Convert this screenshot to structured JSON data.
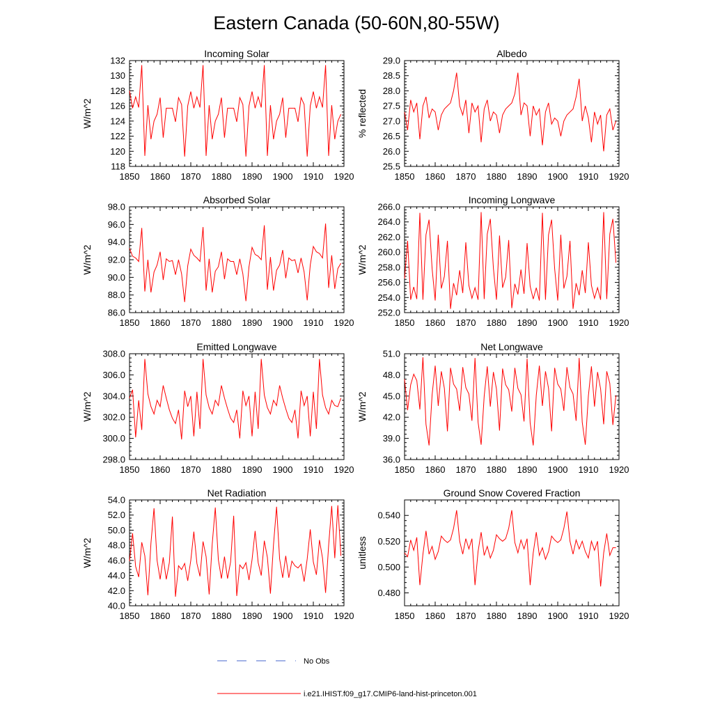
{
  "page": {
    "title": "Eastern Canada (50-60N,80-55W)",
    "colors": {
      "model_line": "#ff0000",
      "obs_line": "#4466cc",
      "axes": "#000000"
    }
  },
  "legend": {
    "obs_label": "No Obs",
    "model_label": "i.e21.IHIST.f09_g17.CMIP6-land-hist-princeton.001"
  },
  "chart_data": [
    {
      "type": "line",
      "title": "Incoming Solar",
      "ylabel": "W/m^2",
      "xlim": [
        1850,
        1920
      ],
      "ylim": [
        118,
        132
      ],
      "yticks": [
        "118",
        "120",
        "122",
        "124",
        "126",
        "128",
        "130",
        "132"
      ],
      "xticks": [
        "1850",
        "1860",
        "1870",
        "1880",
        "1890",
        "1900",
        "1910",
        "1920"
      ],
      "x_start": 1850,
      "series": [
        {
          "values": [
            128.0,
            125.7,
            127.2,
            125.8,
            131.4,
            119.4,
            126.1,
            121.6,
            124.0,
            124.9,
            127.1,
            121.8,
            125.7,
            125.7,
            125.7,
            123.9,
            127.1,
            126.2,
            119.3,
            126.0,
            127.9,
            125.7,
            127.2,
            125.8,
            131.4,
            119.4,
            126.1,
            121.6,
            124.0,
            124.9,
            127.1,
            121.8,
            125.7,
            125.7,
            125.7,
            123.9,
            127.1,
            126.2,
            119.3,
            126.0,
            127.9,
            125.7,
            127.2,
            125.8,
            131.4,
            119.4,
            126.1,
            121.6,
            124.0,
            124.9,
            127.1,
            121.8,
            125.7,
            125.7,
            125.7,
            123.9,
            127.1,
            126.2,
            119.3,
            126.0,
            127.9,
            125.7,
            127.2,
            125.8,
            131.4,
            119.4,
            126.1,
            121.6,
            124.0,
            124.9
          ]
        }
      ]
    },
    {
      "type": "line",
      "title": "Albedo",
      "ylabel": "% reflected",
      "xlim": [
        1850,
        1920
      ],
      "ylim": [
        25.5,
        29.0
      ],
      "yticks": [
        "25.5",
        "26.0",
        "26.5",
        "27.0",
        "27.5",
        "28.0",
        "28.5",
        "29.0"
      ],
      "xticks": [
        "1850",
        "1860",
        "1870",
        "1880",
        "1890",
        "1900",
        "1910",
        "1920"
      ],
      "x_start": 1850,
      "series": [
        {
          "values": [
            27.3,
            26.7,
            27.7,
            27.3,
            27.6,
            26.4,
            27.5,
            27.8,
            27.1,
            27.4,
            27.3,
            26.7,
            27.2,
            27.4,
            27.5,
            27.6,
            28.0,
            28.6,
            27.5,
            27.2,
            27.7,
            26.6,
            27.6,
            27.3,
            27.5,
            26.3,
            27.4,
            27.7,
            27.0,
            27.3,
            27.2,
            26.6,
            27.2,
            27.4,
            27.5,
            27.6,
            27.9,
            28.6,
            27.2,
            27.6,
            27.5,
            26.5,
            27.5,
            27.2,
            27.4,
            26.2,
            27.3,
            27.6,
            26.9,
            27.1,
            27.0,
            26.5,
            27.0,
            27.2,
            27.3,
            27.4,
            27.8,
            28.4,
            27.0,
            27.5,
            27.1,
            26.3,
            27.3,
            26.9,
            27.2,
            26.0,
            27.2,
            27.4,
            26.7,
            27.0
          ]
        }
      ]
    },
    {
      "type": "line",
      "title": "Absorbed Solar",
      "ylabel": "W/m^2",
      "xlim": [
        1850,
        1920
      ],
      "ylim": [
        86.0,
        98.0
      ],
      "yticks": [
        "86.0",
        "88.0",
        "90.0",
        "92.0",
        "94.0",
        "96.0",
        "98.0"
      ],
      "xticks": [
        "1850",
        "1860",
        "1870",
        "1880",
        "1890",
        "1900",
        "1910",
        "1920"
      ],
      "x_start": 1850,
      "series": [
        {
          "values": [
            93.3,
            92.4,
            92.2,
            91.8,
            95.6,
            88.4,
            92.0,
            88.3,
            90.6,
            91.4,
            92.9,
            89.7,
            92.1,
            91.8,
            91.9,
            90.3,
            92.0,
            90.4,
            87.2,
            91.3,
            93.2,
            92.5,
            92.2,
            91.8,
            95.7,
            88.5,
            92.1,
            88.3,
            90.7,
            91.2,
            92.9,
            89.8,
            92.1,
            91.8,
            91.8,
            90.3,
            92.1,
            90.4,
            87.3,
            91.2,
            93.4,
            92.6,
            92.4,
            92.0,
            95.9,
            88.6,
            92.3,
            88.5,
            90.8,
            91.4,
            93.1,
            89.9,
            92.2,
            91.9,
            92.0,
            90.5,
            92.2,
            90.6,
            87.4,
            91.4,
            93.5,
            92.9,
            92.7,
            92.2,
            96.1,
            88.8,
            92.5,
            88.7,
            91.0,
            91.6
          ]
        }
      ]
    },
    {
      "type": "line",
      "title": "Incoming Longwave",
      "ylabel": "W/m^2",
      "xlim": [
        1850,
        1920
      ],
      "ylim": [
        252.0,
        266.0
      ],
      "yticks": [
        "252.0",
        "254.0",
        "256.0",
        "258.0",
        "260.0",
        "262.0",
        "264.0",
        "266.0"
      ],
      "xticks": [
        "1850",
        "1860",
        "1870",
        "1880",
        "1890",
        "1900",
        "1910",
        "1920"
      ],
      "x_start": 1850,
      "series": [
        {
          "values": [
            256.5,
            261.5,
            253.7,
            255.4,
            253.8,
            265.2,
            253.7,
            262.3,
            264.3,
            257.8,
            253.6,
            262.3,
            255.2,
            256.8,
            261.5,
            252.5,
            255.9,
            254.3,
            257.6,
            254.6,
            261.3,
            255.6,
            253.9,
            255.3,
            253.7,
            265.3,
            253.8,
            262.4,
            264.4,
            257.9,
            253.7,
            262.2,
            255.3,
            256.7,
            261.6,
            252.6,
            255.8,
            254.4,
            257.7,
            254.5,
            261.2,
            255.5,
            253.8,
            255.3,
            253.6,
            265.2,
            253.7,
            262.3,
            264.3,
            257.8,
            253.6,
            262.3,
            255.2,
            256.8,
            261.5,
            252.5,
            255.9,
            254.3,
            257.6,
            254.6,
            261.3,
            255.6,
            253.9,
            255.3,
            253.7,
            265.3,
            253.8,
            262.4,
            264.4,
            258.6
          ]
        }
      ]
    },
    {
      "type": "line",
      "title": "Emitted Longwave",
      "ylabel": "W/m^2",
      "xlim": [
        1850,
        1920
      ],
      "ylim": [
        298.0,
        308.0
      ],
      "yticks": [
        "298.0",
        "300.0",
        "302.0",
        "304.0",
        "306.0",
        "308.0"
      ],
      "xticks": [
        "1850",
        "1860",
        "1870",
        "1880",
        "1890",
        "1900",
        "1910",
        "1920"
      ],
      "x_start": 1850,
      "series": [
        {
          "values": [
            303.8,
            304.6,
            300.1,
            303.6,
            300.8,
            307.5,
            304.2,
            303.0,
            302.3,
            303.6,
            303.0,
            305.0,
            303.8,
            302.7,
            301.9,
            301.4,
            302.7,
            299.9,
            304.5,
            303.0,
            304.0,
            300.2,
            304.4,
            300.9,
            307.5,
            304.1,
            302.9,
            302.3,
            303.6,
            303.1,
            305.0,
            303.8,
            302.8,
            301.9,
            301.5,
            302.7,
            300.0,
            304.5,
            303.1,
            304.0,
            300.2,
            304.4,
            300.9,
            307.5,
            304.1,
            302.9,
            302.3,
            303.6,
            303.1,
            305.0,
            303.8,
            302.8,
            301.9,
            301.5,
            302.7,
            300.0,
            304.5,
            303.1,
            304.0,
            300.2,
            304.4,
            300.9,
            307.5,
            304.1,
            302.9,
            302.3,
            303.6,
            303.1,
            303.0,
            303.8
          ]
        }
      ]
    },
    {
      "type": "line",
      "title": "Net Longwave",
      "ylabel": "W/m^2",
      "xlim": [
        1850,
        1920
      ],
      "ylim": [
        36.0,
        51.0
      ],
      "yticks": [
        "36.0",
        "39.0",
        "42.0",
        "45.0",
        "48.0",
        "51.0"
      ],
      "xticks": [
        "1850",
        "1860",
        "1870",
        "1880",
        "1890",
        "1900",
        "1910",
        "1920"
      ],
      "x_start": 1850,
      "series": [
        {
          "values": [
            47.4,
            43.0,
            46.6,
            48.1,
            47.2,
            43.1,
            50.5,
            41.0,
            38.0,
            45.2,
            49.3,
            43.6,
            48.5,
            46.1,
            40.0,
            49.0,
            46.7,
            46.0,
            42.9,
            49.1,
            46.2,
            45.3,
            41.5,
            50.4,
            41.3,
            38.1,
            45.0,
            49.2,
            43.5,
            48.4,
            46.0,
            40.1,
            48.9,
            46.6,
            45.9,
            42.8,
            49.0,
            46.1,
            45.2,
            41.4,
            50.3,
            41.2,
            38.0,
            45.1,
            49.3,
            43.6,
            48.5,
            46.1,
            40.0,
            49.0,
            46.7,
            46.0,
            42.9,
            49.1,
            46.2,
            45.3,
            41.5,
            50.4,
            41.3,
            38.1,
            45.0,
            49.2,
            43.5,
            48.4,
            46.0,
            41.0,
            48.5,
            46.8,
            40.9,
            45.1
          ]
        }
      ]
    },
    {
      "type": "line",
      "title": "Net Radiation",
      "ylabel": "W/m^2",
      "xlim": [
        1850,
        1920
      ],
      "ylim": [
        40.0,
        54.0
      ],
      "yticks": [
        "40.0",
        "42.0",
        "44.0",
        "46.0",
        "48.0",
        "50.0",
        "52.0",
        "54.0"
      ],
      "xticks": [
        "1850",
        "1860",
        "1870",
        "1880",
        "1890",
        "1900",
        "1910",
        "1920"
      ],
      "x_start": 1850,
      "series": [
        {
          "values": [
            45.9,
            49.6,
            45.2,
            43.8,
            48.4,
            46.6,
            41.4,
            48.3,
            52.9,
            46.0,
            43.5,
            46.4,
            43.5,
            45.7,
            51.8,
            41.2,
            45.3,
            44.8,
            45.6,
            43.3,
            46.0,
            49.8,
            45.6,
            43.9,
            48.5,
            46.5,
            41.5,
            48.2,
            53.0,
            46.1,
            43.6,
            46.5,
            43.6,
            45.8,
            51.9,
            41.3,
            45.4,
            44.9,
            45.7,
            43.4,
            46.1,
            49.9,
            45.7,
            44.0,
            48.6,
            46.4,
            41.6,
            48.1,
            53.1,
            46.2,
            43.7,
            46.6,
            43.7,
            45.9,
            45.3,
            45.0,
            45.5,
            43.2,
            46.2,
            50.1,
            45.8,
            44.1,
            48.7,
            46.3,
            41.7,
            48.0,
            53.2,
            46.3,
            53.3,
            46.6
          ]
        }
      ]
    },
    {
      "type": "line",
      "title": "Ground Snow Covered Fraction",
      "ylabel": "unitless",
      "xlim": [
        1850,
        1920
      ],
      "ylim": [
        0.47,
        0.552
      ],
      "yticks": [
        "0.480",
        "0.500",
        "0.520",
        "0.540"
      ],
      "ytick_values": [
        0.48,
        0.5,
        0.52,
        0.54
      ],
      "xticks": [
        "1850",
        "1860",
        "1870",
        "1880",
        "1890",
        "1900",
        "1910",
        "1920"
      ],
      "x_start": 1850,
      "series": [
        {
          "values": [
            0.511,
            0.508,
            0.521,
            0.513,
            0.523,
            0.486,
            0.51,
            0.528,
            0.51,
            0.516,
            0.506,
            0.512,
            0.524,
            0.521,
            0.519,
            0.521,
            0.53,
            0.544,
            0.52,
            0.51,
            0.522,
            0.514,
            0.522,
            0.486,
            0.512,
            0.527,
            0.509,
            0.516,
            0.507,
            0.513,
            0.525,
            0.522,
            0.52,
            0.522,
            0.53,
            0.544,
            0.519,
            0.511,
            0.521,
            0.514,
            0.522,
            0.486,
            0.511,
            0.527,
            0.509,
            0.515,
            0.506,
            0.512,
            0.524,
            0.521,
            0.519,
            0.521,
            0.53,
            0.543,
            0.52,
            0.51,
            0.521,
            0.514,
            0.52,
            0.512,
            0.507,
            0.52,
            0.513,
            0.52,
            0.485,
            0.511,
            0.526,
            0.509,
            0.515,
            0.515
          ]
        }
      ]
    }
  ]
}
